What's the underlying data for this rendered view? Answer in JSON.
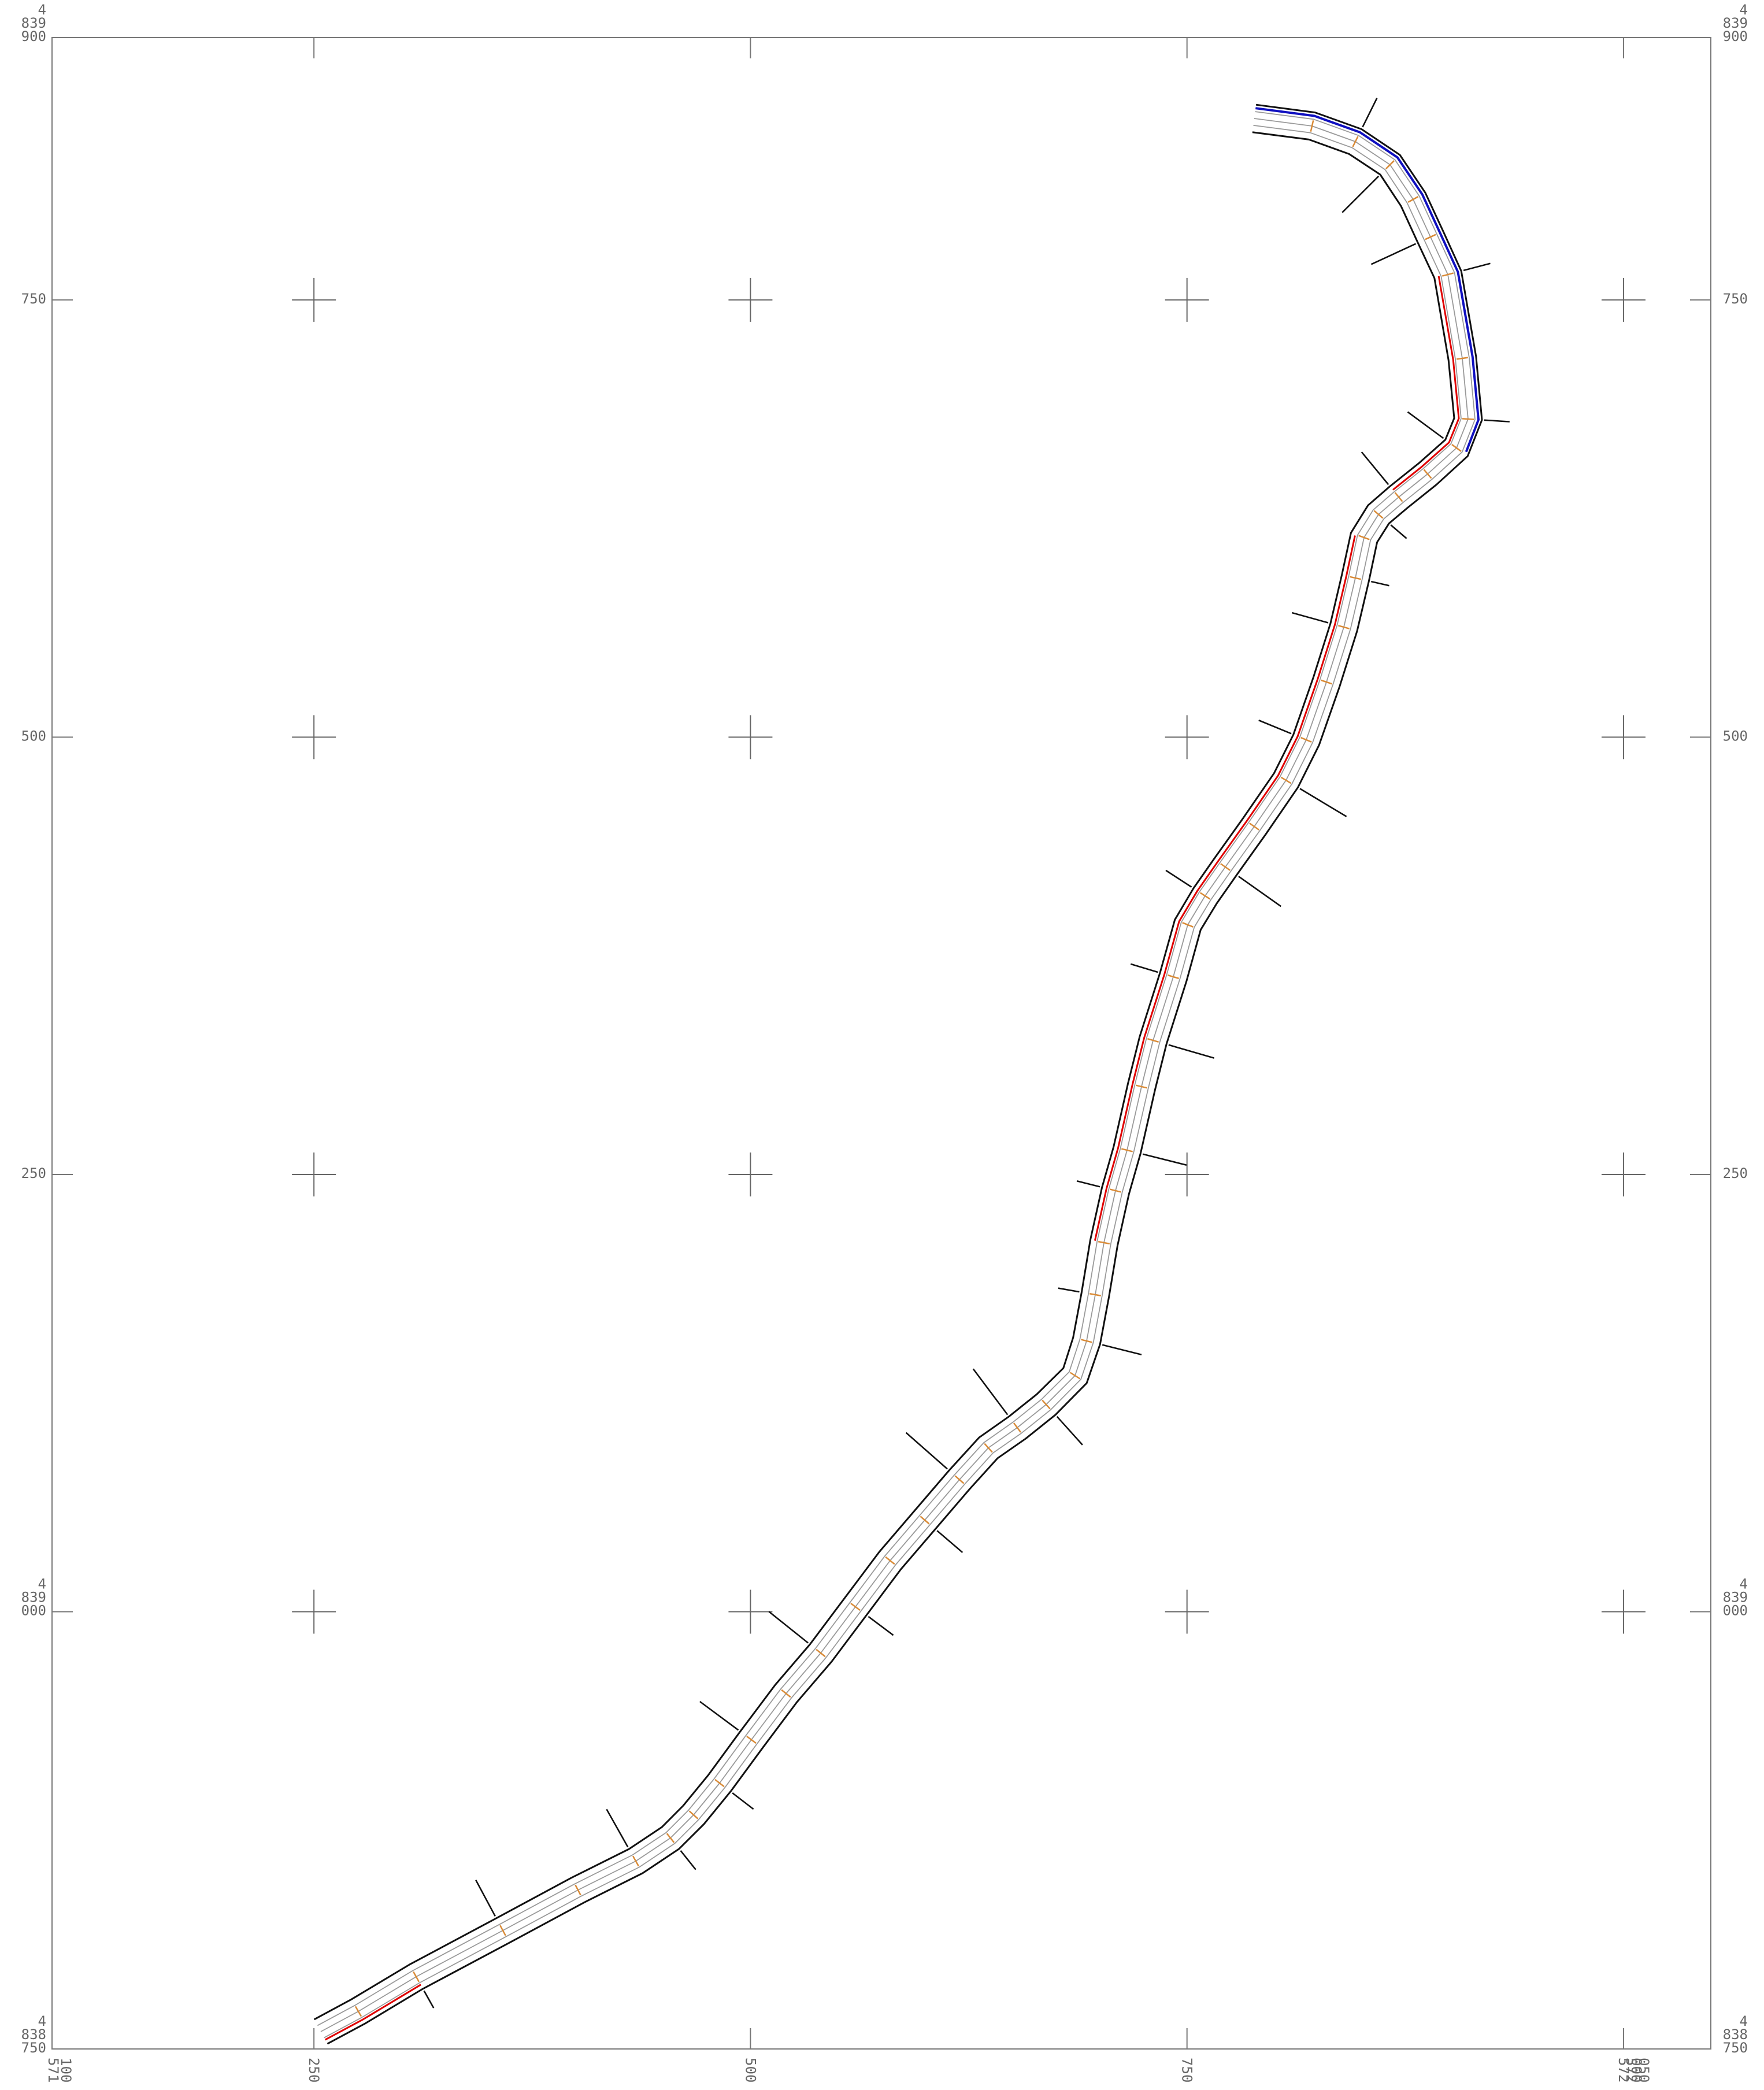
{
  "map": {
    "easting_labels": [
      {
        "value": 250,
        "lines": [
          "250"
        ]
      },
      {
        "value": 500,
        "lines": [
          "500"
        ]
      },
      {
        "value": 750,
        "lines": [
          "750"
        ]
      },
      {
        "value": 1000,
        "lines": [
          "572",
          "000"
        ]
      }
    ],
    "easting_corner_left": [
      "571",
      "100"
    ],
    "easting_corner_right": [
      "572",
      "050"
    ],
    "northing_labels": [
      {
        "value": 900,
        "lines": [
          "4",
          "839",
          "900"
        ]
      },
      {
        "value": 750,
        "lines": [
          "750"
        ]
      },
      {
        "value": 500,
        "lines": [
          "500"
        ]
      },
      {
        "value": 250,
        "lines": [
          "250"
        ]
      },
      {
        "value": 0,
        "lines": [
          "4",
          "839",
          "000"
        ]
      },
      {
        "value": -250,
        "lines": [
          "4",
          "838",
          "750"
        ]
      }
    ],
    "colors": {
      "road_edge": "#111111",
      "lane": "#9a9a9a",
      "section_marks": "#d98a35",
      "alert_segments": "#e00000",
      "reinforced_segments": "#1010c0",
      "station_labels": "#10d010",
      "grid": "#777777"
    }
  }
}
